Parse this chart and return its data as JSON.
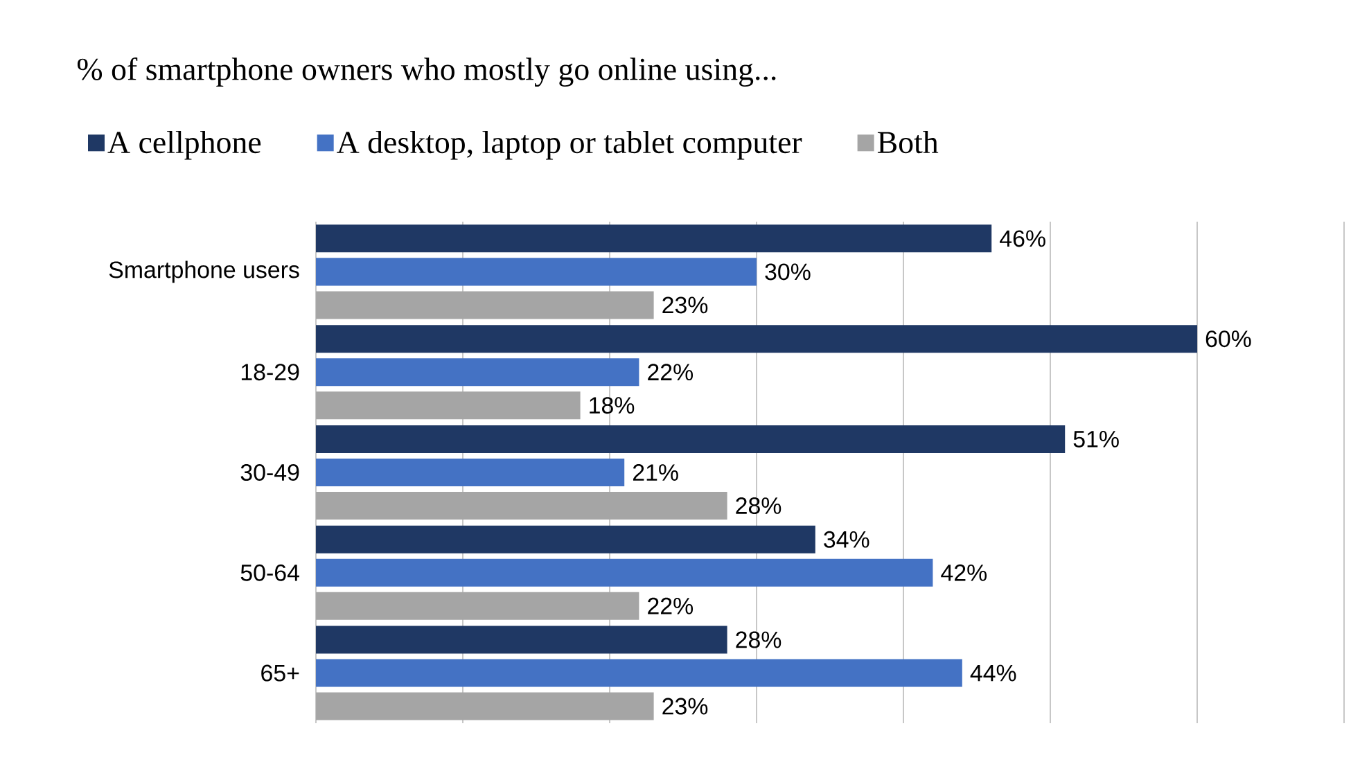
{
  "chart_data": {
    "type": "bar",
    "orientation": "horizontal",
    "title": "% of smartphone owners who mostly go online using...",
    "categories": [
      "Smartphone users",
      "18-29",
      "30-49",
      "50-64",
      "65+"
    ],
    "series": [
      {
        "name": "A cellphone",
        "color": "#1f3864",
        "values": [
          46,
          60,
          51,
          34,
          28
        ],
        "value_labels": [
          "46%",
          "60%",
          "51%",
          "34%",
          "28%"
        ]
      },
      {
        "name": "A desktop, laptop or tablet computer",
        "color": "#4472c4",
        "values": [
          30,
          22,
          21,
          42,
          44
        ],
        "value_labels": [
          "30%",
          "22%",
          "21%",
          "42%",
          "44%"
        ]
      },
      {
        "name": "Both",
        "color": "#a5a5a5",
        "values": [
          23,
          18,
          28,
          22,
          23
        ],
        "value_labels": [
          "23%",
          "18%",
          "28%",
          "22%",
          "23%"
        ]
      }
    ],
    "xlim": [
      0,
      70
    ],
    "xticks": [
      {
        "value": 0,
        "label": null
      },
      {
        "value": 10,
        "label": null
      },
      {
        "value": 20,
        "label": null
      },
      {
        "value": 30,
        "label": null
      },
      {
        "value": 40,
        "label": null
      },
      {
        "value": 50,
        "label": null
      },
      {
        "value": 60,
        "label": null
      },
      {
        "value": 70,
        "label": null
      }
    ],
    "grid": "x",
    "legend": "top",
    "tick_labels": "y"
  }
}
